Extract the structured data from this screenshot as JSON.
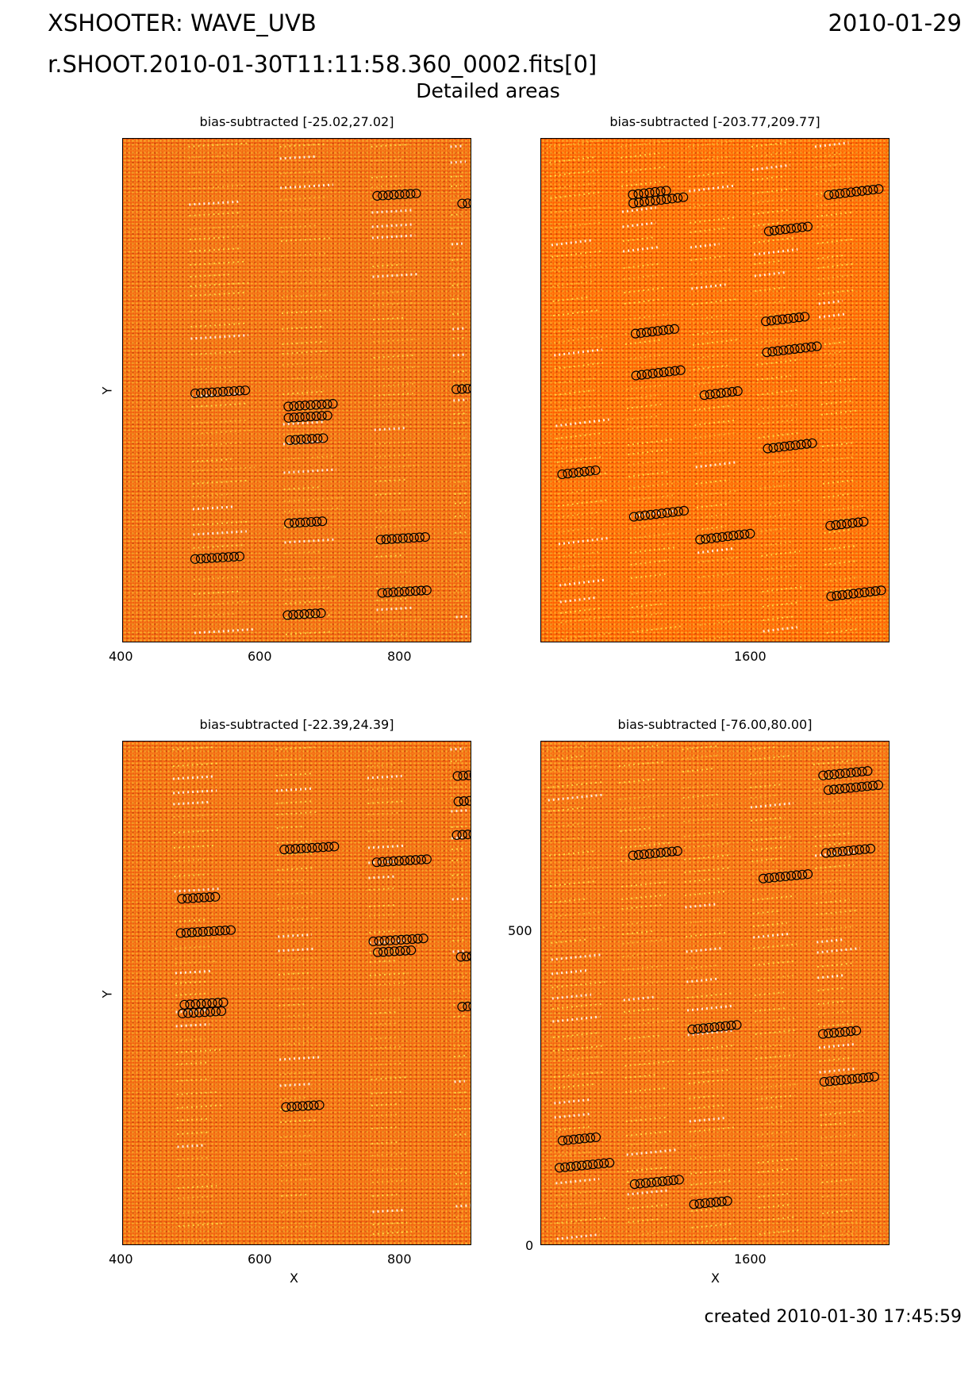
{
  "header": {
    "instrument": "XSHOOTER: WAVE_UVB",
    "date": "2010-01-29",
    "file": "r.SHOOT.2010-01-30T11:11:58.360_0002.fits[0]",
    "subtitle": "Detailed areas",
    "created": "created 2010-01-30 17:45:59"
  },
  "panels": [
    {
      "title": "bias-subtracted [-25.02,27.02]",
      "x_ticks": [
        "400",
        "600",
        "800"
      ],
      "y_ticks": [],
      "xlabel": "",
      "ylabel": "Y"
    },
    {
      "title": "bias-subtracted [-203.77,209.77]",
      "x_ticks": [
        "1600"
      ],
      "y_ticks": [],
      "xlabel": "",
      "ylabel": ""
    },
    {
      "title": "bias-subtracted [-22.39,24.39]",
      "x_ticks": [
        "400",
        "600",
        "800"
      ],
      "y_ticks": [],
      "xlabel": "X",
      "ylabel": "Y"
    },
    {
      "title": "bias-subtracted [-76.00,80.00]",
      "x_ticks": [
        "1600"
      ],
      "y_ticks": [
        "500",
        "0"
      ],
      "xlabel": "X",
      "ylabel": ""
    }
  ],
  "colors": {
    "background": "#f05e10",
    "bright_background": "#ff5c00",
    "emission_line": "#ffe44a",
    "line_core": "#ffffff",
    "marker": "#000000"
  }
}
